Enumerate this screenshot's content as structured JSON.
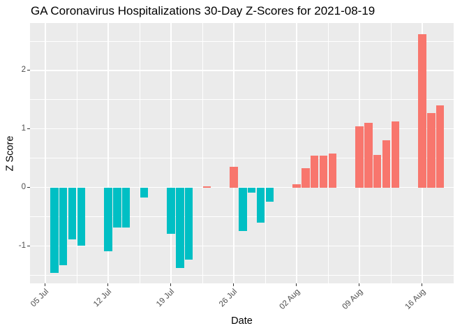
{
  "title": "GA Coronavirus Hospitalizations 30-Day Z-Scores for 2021-08-19",
  "chart_data": {
    "type": "bar",
    "title": "GA Coronavirus Hospitalizations 30-Day Z-Scores for 2021-08-19",
    "xlabel": "Date",
    "ylabel": "Z Score",
    "legend": "none",
    "grid": "on",
    "panel_bg": "#EBEBEB",
    "grid_color": "#FFFFFF",
    "tick_label_color": "#4D4D4D",
    "positive_color": "#F8766D",
    "negative_color": "#00BFC4",
    "bar_width_days": 0.9,
    "x_origin_date": "2021-07-05",
    "x_range_days": [
      -1.71,
      45.5
    ],
    "ylim": [
      -1.64,
      2.81
    ],
    "x_ticks": [
      {
        "label": "05 Jul",
        "date": "2021-07-05"
      },
      {
        "label": "12 Jul",
        "date": "2021-07-12"
      },
      {
        "label": "19 Jul",
        "date": "2021-07-19"
      },
      {
        "label": "26 Jul",
        "date": "2021-07-26"
      },
      {
        "label": "02 Aug",
        "date": "2021-08-02"
      },
      {
        "label": "09 Aug",
        "date": "2021-08-09"
      },
      {
        "label": "16 Aug",
        "date": "2021-08-16"
      }
    ],
    "y_ticks": [
      {
        "label": "-1",
        "value": -1
      },
      {
        "label": "0",
        "value": 0
      },
      {
        "label": "1",
        "value": 1
      },
      {
        "label": "2",
        "value": 2
      }
    ],
    "y_minor_ticks": [
      -1.5,
      -0.5,
      0.5,
      1.5,
      2.5
    ],
    "points": [
      {
        "date": "2021-07-06",
        "z": -1.46
      },
      {
        "date": "2021-07-07",
        "z": -1.33
      },
      {
        "date": "2021-07-08",
        "z": -0.89
      },
      {
        "date": "2021-07-09",
        "z": -0.99
      },
      {
        "date": "2021-07-12",
        "z": -1.09
      },
      {
        "date": "2021-07-13",
        "z": -0.69
      },
      {
        "date": "2021-07-14",
        "z": -0.69
      },
      {
        "date": "2021-07-16",
        "z": -0.17
      },
      {
        "date": "2021-07-19",
        "z": -0.79
      },
      {
        "date": "2021-07-20",
        "z": -1.38
      },
      {
        "date": "2021-07-21",
        "z": -1.24
      },
      {
        "date": "2021-07-23",
        "z": 0.02
      },
      {
        "date": "2021-07-26",
        "z": 0.35
      },
      {
        "date": "2021-07-27",
        "z": -0.74
      },
      {
        "date": "2021-07-28",
        "z": -0.09
      },
      {
        "date": "2021-07-29",
        "z": -0.6
      },
      {
        "date": "2021-07-30",
        "z": -0.25
      },
      {
        "date": "2021-08-02",
        "z": 0.06
      },
      {
        "date": "2021-08-03",
        "z": 0.33
      },
      {
        "date": "2021-08-04",
        "z": 0.54
      },
      {
        "date": "2021-08-05",
        "z": 0.54
      },
      {
        "date": "2021-08-06",
        "z": 0.58
      },
      {
        "date": "2021-08-09",
        "z": 1.05
      },
      {
        "date": "2021-08-10",
        "z": 1.1
      },
      {
        "date": "2021-08-11",
        "z": 0.56
      },
      {
        "date": "2021-08-12",
        "z": 0.81
      },
      {
        "date": "2021-08-13",
        "z": 1.13
      },
      {
        "date": "2021-08-16",
        "z": 2.62
      },
      {
        "date": "2021-08-17",
        "z": 1.27
      },
      {
        "date": "2021-08-18",
        "z": 1.4
      }
    ]
  }
}
